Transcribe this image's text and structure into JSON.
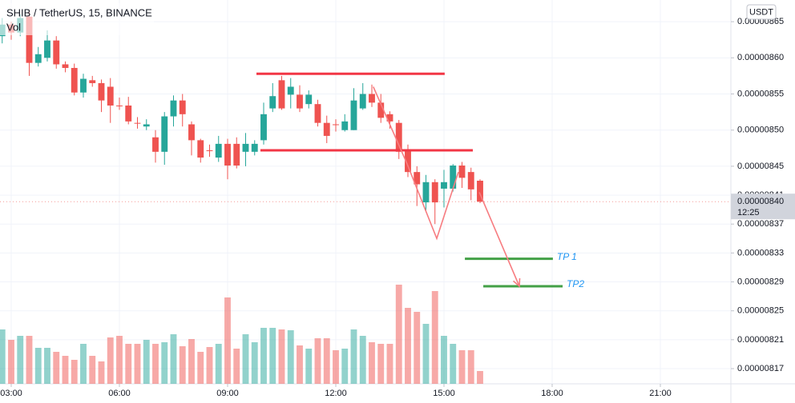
{
  "chart_data": {
    "type": "candlestick",
    "title": "SHIB / TetherUS, 15, BINANCE",
    "volume_label": "Vol",
    "currency": "USDT",
    "price_label": "0.00000840",
    "countdown": "12:25",
    "up_color": "#26a69a",
    "down_color": "#ef5350",
    "grid": true,
    "x": [
      2.75,
      3,
      3.25,
      3.5,
      3.75,
      4,
      4.25,
      4.5,
      4.75,
      5,
      5.25,
      5.5,
      5.75,
      6,
      6.25,
      6.5,
      6.75,
      7,
      7.25,
      7.5,
      7.75,
      8,
      8.25,
      8.5,
      8.75,
      9,
      9.25,
      9.5,
      9.75,
      10,
      10.25,
      10.5,
      10.75,
      11,
      11.25,
      11.5,
      11.75,
      12,
      12.25,
      12.5,
      12.75,
      13,
      13.25,
      13.5,
      13.75,
      14,
      14.25,
      14.5,
      14.75,
      15,
      15.25,
      15.5,
      15.75,
      16
    ],
    "open": [
      8.63e-07,
      8.646e-07,
      8.635e-07,
      8.657e-07,
      8.593e-07,
      8.6e-07,
      8.624e-07,
      8.591e-07,
      8.586e-07,
      8.552e-07,
      8.569e-07,
      8.565e-07,
      8.56e-07,
      8.534e-07,
      8.534e-07,
      8.51e-07,
      8.505e-07,
      8.49e-07,
      8.47e-07,
      8.519e-07,
      8.541e-07,
      8.508e-07,
      8.486e-07,
      8.472e-07,
      8.462e-07,
      8.481e-07,
      8.481e-07,
      8.47e-07,
      8.47e-07,
      8.486e-07,
      8.53e-07,
      8.569e-07,
      8.549e-07,
      8.549e-07,
      8.536e-07,
      8.536e-07,
      8.51e-07,
      8.508e-07,
      8.5e-07,
      8.5e-07,
      8.53e-07,
      8.55e-07,
      8.538e-07,
      8.522e-07,
      8.51e-07,
      8.472e-07,
      8.442e-07,
      8.4e-07,
      8.428e-07,
      8.419e-07,
      8.419e-07,
      8.451e-07,
      8.442e-07,
      8.43e-07
    ],
    "high": [
      8.655e-07,
      8.65e-07,
      8.66e-07,
      8.665e-07,
      8.615e-07,
      8.638e-07,
      8.63e-07,
      8.595e-07,
      8.592e-07,
      8.578e-07,
      8.575e-07,
      8.57e-07,
      8.572e-07,
      8.545e-07,
      8.546e-07,
      8.518e-07,
      8.515e-07,
      8.5e-07,
      8.525e-07,
      8.548e-07,
      8.55e-07,
      8.512e-07,
      8.488e-07,
      8.48e-07,
      8.492e-07,
      8.488e-07,
      8.49e-07,
      8.496e-07,
      8.486e-07,
      8.538e-07,
      8.565e-07,
      8.575e-07,
      8.572e-07,
      8.562e-07,
      8.555e-07,
      8.542e-07,
      8.52e-07,
      8.515e-07,
      8.522e-07,
      8.558e-07,
      8.565e-07,
      8.563e-07,
      8.55e-07,
      8.526e-07,
      8.514e-07,
      8.48e-07,
      8.45e-07,
      8.438e-07,
      8.432e-07,
      8.445e-07,
      8.453e-07,
      8.456e-07,
      8.448e-07,
      8.432e-07
    ],
    "low": [
      8.62e-07,
      8.625e-07,
      8.63e-07,
      8.575e-07,
      8.588e-07,
      8.595e-07,
      8.585e-07,
      8.58e-07,
      8.548e-07,
      8.545e-07,
      8.56e-07,
      8.525e-07,
      8.51e-07,
      8.528e-07,
      8.508e-07,
      8.502e-07,
      8.5e-07,
      8.455e-07,
      8.452e-07,
      8.505e-07,
      8.505e-07,
      8.465e-07,
      8.455e-07,
      8.463e-07,
      8.456e-07,
      8.432e-07,
      8.447e-07,
      8.45e-07,
      8.465e-07,
      8.48e-07,
      8.525e-07,
      8.528e-07,
      8.53e-07,
      8.525e-07,
      8.53e-07,
      8.505e-07,
      8.482e-07,
      8.498e-07,
      8.498e-07,
      8.5e-07,
      8.528e-07,
      8.532e-07,
      8.51e-07,
      8.502e-07,
      8.46e-07,
      8.435e-07,
      8.395e-07,
      8.388e-07,
      8.37e-07,
      8.393e-07,
      8.415e-07,
      8.42e-07,
      8.403e-07,
      8.399e-07
    ],
    "close": [
      8.646e-07,
      8.635e-07,
      8.655e-07,
      8.593e-07,
      8.605e-07,
      8.624e-07,
      8.591e-07,
      8.586e-07,
      8.552e-07,
      8.571e-07,
      8.565e-07,
      8.541e-07,
      8.534e-07,
      8.533e-07,
      8.512e-07,
      8.509e-07,
      8.508e-07,
      8.47e-07,
      8.519e-07,
      8.541e-07,
      8.522e-07,
      8.486e-07,
      8.462e-07,
      8.471e-07,
      8.481e-07,
      8.451e-07,
      8.451e-07,
      8.481e-07,
      8.481e-07,
      8.522e-07,
      8.547e-07,
      8.53e-07,
      8.56e-07,
      8.53e-07,
      8.549e-07,
      8.51e-07,
      8.492e-07,
      8.507e-07,
      8.512e-07,
      8.541e-07,
      8.55e-07,
      8.538e-07,
      8.517e-07,
      8.512e-07,
      8.47e-07,
      8.442e-07,
      8.425e-07,
      8.428e-07,
      8.4e-07,
      8.428e-07,
      8.451e-07,
      8.434e-07,
      8.418e-07,
      8.401e-07
    ],
    "volume": [
      68,
      55,
      60,
      60,
      45,
      45,
      40,
      35,
      30,
      50,
      35,
      28,
      58,
      60,
      50,
      50,
      55,
      50,
      52,
      62,
      47,
      56,
      40,
      46,
      50,
      108,
      44,
      62,
      52,
      70,
      70,
      68,
      67,
      48,
      44,
      57,
      57,
      42,
      44,
      68,
      60,
      52,
      50,
      50,
      124,
      95,
      90,
      75,
      116,
      60,
      50,
      42,
      42,
      16
    ],
    "xlim": [
      2.689,
      22.956
    ],
    "ylim": [
      8.149e-07,
      8.68e-07
    ],
    "xticks": [
      {
        "value": 3,
        "label": "03:00"
      },
      {
        "value": 6,
        "label": "06:00"
      },
      {
        "value": 9,
        "label": "09:00"
      },
      {
        "value": 12,
        "label": "12:00"
      },
      {
        "value": 15,
        "label": "15:00"
      },
      {
        "value": 18,
        "label": "18:00"
      },
      {
        "value": 21,
        "label": "21:00"
      }
    ],
    "yticks": [
      {
        "value": 8.65e-07,
        "label": "0.00000865"
      },
      {
        "value": 8.6e-07,
        "label": "0.00000860"
      },
      {
        "value": 8.55e-07,
        "label": "0.00000855"
      },
      {
        "value": 8.5e-07,
        "label": "0.00000850"
      },
      {
        "value": 8.45e-07,
        "label": "0.00000845"
      },
      {
        "value": 8.41e-07,
        "label": "0.00000841"
      },
      {
        "value": 8.37e-07,
        "label": "0.00000837"
      },
      {
        "value": 8.33e-07,
        "label": "0.00000833"
      },
      {
        "value": 8.29e-07,
        "label": "0.00000829"
      },
      {
        "value": 8.25e-07,
        "label": "0.00000825"
      },
      {
        "value": 8.21e-07,
        "label": "0.00000821"
      },
      {
        "value": 8.17e-07,
        "label": "0.00000817"
      }
    ],
    "levels": [
      {
        "x": [
          9.8,
          15.02
        ],
        "y": [
          8.578e-07,
          8.578e-07
        ],
        "color": "#f23645"
      },
      {
        "x": [
          9.91,
          15.8
        ],
        "y": [
          8.472e-07,
          8.472e-07
        ],
        "color": "#f23645"
      }
    ],
    "targets": [
      {
        "label": "TP 1",
        "x": [
          15.58,
          18.02
        ],
        "y": [
          8.322e-07,
          8.322e-07
        ],
        "color": "#43a047"
      },
      {
        "label": "TP2",
        "x": [
          16.09,
          18.29
        ],
        "y": [
          8.284e-07,
          8.284e-07
        ],
        "color": "#43a047"
      }
    ],
    "pattern": {
      "x": [
        13.04,
        13.98,
        14.8,
        15.4
      ],
      "y": [
        8.56e-07,
        8.453e-07,
        8.35e-07,
        8.442e-07
      ],
      "color": "#f77c80"
    },
    "arrow": {
      "x": [
        15.98,
        17.09
      ],
      "y": [
        8.414e-07,
        8.284e-07
      ],
      "color": "#f77c80"
    }
  }
}
